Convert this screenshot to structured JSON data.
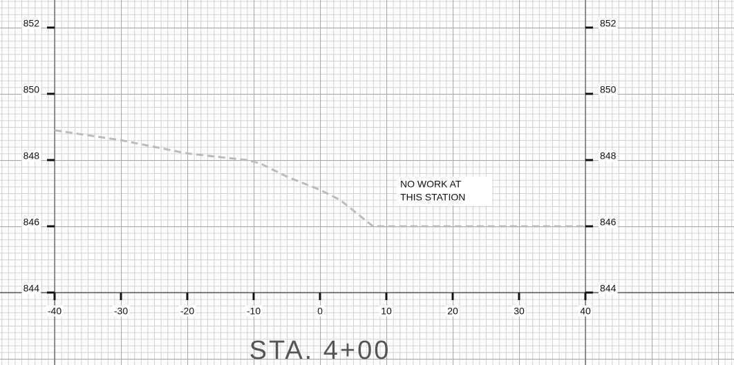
{
  "chart_data": {
    "type": "line",
    "title": "STA. 4+00",
    "annotation": [
      "NO WORK AT",
      "THIS STATION"
    ],
    "x": [
      -40,
      -30,
      -20,
      -11,
      -9,
      -5,
      0,
      3,
      8,
      40
    ],
    "series": [
      {
        "color": "#bbbbbb",
        "values": [
          848.9,
          848.6,
          848.2,
          848.0,
          847.9,
          847.5,
          847.1,
          846.8,
          846.0,
          846.0
        ]
      }
    ],
    "xlim": [
      -40,
      40
    ],
    "xticks": [
      -40,
      -30,
      -20,
      -10,
      0,
      10,
      20,
      30,
      40
    ],
    "ylim": [
      844,
      852
    ],
    "yticks": [
      844,
      846,
      848,
      850,
      852
    ],
    "grid": true
  }
}
